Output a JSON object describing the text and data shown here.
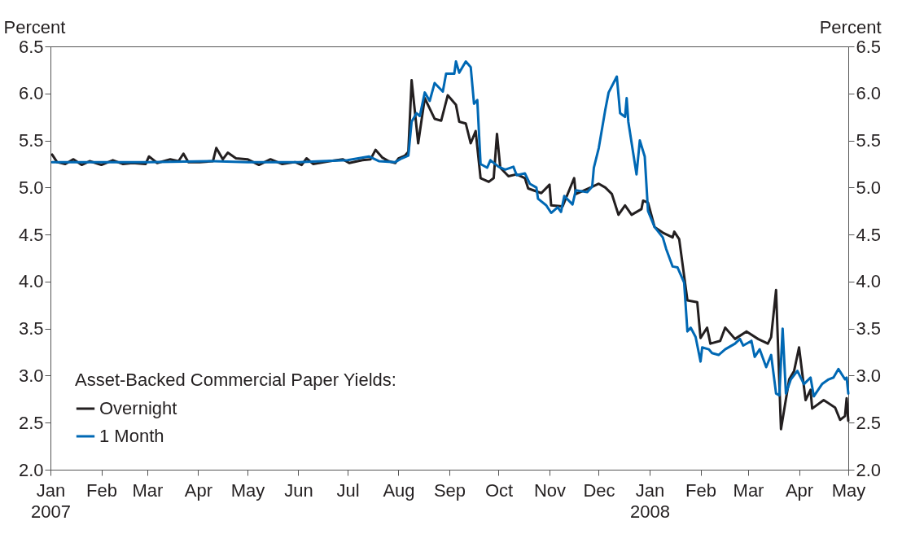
{
  "chart_data": {
    "type": "line",
    "ylabel": "Percent",
    "y2label": "Percent",
    "legend_title": "Asset-Backed Commercial Paper Yields:",
    "legend": "bottom left",
    "grid": false,
    "xlim": [
      "2007-01-01",
      "2008-05-01"
    ],
    "xticks": [
      {
        "value": "2007-01-01",
        "label": "Jan\n2007"
      },
      {
        "value": "2007-02-01",
        "label": "Feb"
      },
      {
        "value": "2007-03-01",
        "label": "Mar"
      },
      {
        "value": "2007-04-01",
        "label": "Apr"
      },
      {
        "value": "2007-05-01",
        "label": "May"
      },
      {
        "value": "2007-06-01",
        "label": "Jun"
      },
      {
        "value": "2007-07-01",
        "label": "Jul"
      },
      {
        "value": "2007-08-01",
        "label": "Aug"
      },
      {
        "value": "2007-09-01",
        "label": "Sep"
      },
      {
        "value": "2007-10-01",
        "label": "Oct"
      },
      {
        "value": "2007-11-01",
        "label": "Nov"
      },
      {
        "value": "2007-12-01",
        "label": "Dec"
      },
      {
        "value": "2008-01-01",
        "label": "Jan\n2008"
      },
      {
        "value": "2008-02-01",
        "label": "Feb"
      },
      {
        "value": "2008-03-01",
        "label": "Mar"
      },
      {
        "value": "2008-04-01",
        "label": "Apr"
      },
      {
        "value": "2008-05-01",
        "label": "May"
      }
    ],
    "ylim": [
      2.0,
      6.5
    ],
    "yticks": [
      {
        "value": 2,
        "label": "2.0"
      },
      {
        "value": 2.5,
        "label": "2.5"
      },
      {
        "value": 3,
        "label": "3.0"
      },
      {
        "value": 3.5,
        "label": "3.5"
      },
      {
        "value": 4,
        "label": "4.0"
      },
      {
        "value": 4.5,
        "label": "4.5"
      },
      {
        "value": 5,
        "label": "5.0"
      },
      {
        "value": 5.5,
        "label": "5.5"
      },
      {
        "value": 6,
        "label": "6.0"
      },
      {
        "value": 6.5,
        "label": "6.5"
      }
    ],
    "y2lim": [
      2.0,
      6.5
    ],
    "y2ticks": [
      {
        "value": 2,
        "label": "2.0"
      },
      {
        "value": 2.5,
        "label": "2.5"
      },
      {
        "value": 3,
        "label": "3.0"
      },
      {
        "value": 3.5,
        "label": "3.5"
      },
      {
        "value": 4,
        "label": "4.0"
      },
      {
        "value": 4.5,
        "label": "4.5"
      },
      {
        "value": 5,
        "label": "5.0"
      },
      {
        "value": 5.5,
        "label": "5.5"
      },
      {
        "value": 6,
        "label": "6.0"
      },
      {
        "value": 6.5,
        "label": "6.5"
      }
    ],
    "series": [
      {
        "name": "Overnight",
        "color": "#231f20",
        "x": [
          "2007-01-02",
          "2007-01-05",
          "2007-01-10",
          "2007-01-15",
          "2007-01-20",
          "2007-01-25",
          "2007-02-01",
          "2007-02-08",
          "2007-02-14",
          "2007-02-20",
          "2007-02-28",
          "2007-03-02",
          "2007-03-07",
          "2007-03-15",
          "2007-03-20",
          "2007-03-23",
          "2007-03-26",
          "2007-04-02",
          "2007-04-10",
          "2007-04-12",
          "2007-04-16",
          "2007-04-19",
          "2007-04-24",
          "2007-05-01",
          "2007-05-08",
          "2007-05-15",
          "2007-05-22",
          "2007-05-30",
          "2007-06-03",
          "2007-06-06",
          "2007-06-10",
          "2007-06-20",
          "2007-06-28",
          "2007-07-02",
          "2007-07-10",
          "2007-07-15",
          "2007-07-18",
          "2007-07-22",
          "2007-07-26",
          "2007-07-30",
          "2007-08-01",
          "2007-08-05",
          "2007-08-07",
          "2007-08-09",
          "2007-08-13",
          "2007-08-17",
          "2007-08-23",
          "2007-08-27",
          "2007-08-31",
          "2007-09-05",
          "2007-09-07",
          "2007-09-11",
          "2007-09-14",
          "2007-09-17",
          "2007-09-20",
          "2007-09-25",
          "2007-09-28",
          "2007-09-30",
          "2007-10-02",
          "2007-10-07",
          "2007-10-12",
          "2007-10-17",
          "2007-10-19",
          "2007-10-27",
          "2007-11-01",
          "2007-11-02",
          "2007-11-09",
          "2007-11-16",
          "2007-11-17",
          "2007-11-26",
          "2007-12-01",
          "2007-12-05",
          "2007-12-09",
          "2007-12-13",
          "2007-12-17",
          "2007-12-21",
          "2007-12-27",
          "2007-12-28",
          "2007-12-31",
          "2008-01-04",
          "2008-01-09",
          "2008-01-15",
          "2008-01-16",
          "2008-01-19",
          "2008-01-24",
          "2008-01-30",
          "2008-02-01",
          "2008-02-05",
          "2008-02-07",
          "2008-02-13",
          "2008-02-16",
          "2008-02-22",
          "2008-02-29",
          "2008-03-07",
          "2008-03-13",
          "2008-03-15",
          "2008-03-18",
          "2008-03-21",
          "2008-03-26",
          "2008-03-29",
          "2008-04-01",
          "2008-04-05",
          "2008-04-08",
          "2008-04-09",
          "2008-04-16",
          "2008-04-23",
          "2008-04-26",
          "2008-04-29",
          "2008-04-30",
          "2008-05-01"
        ],
        "values": [
          5.35,
          5.27,
          5.25,
          5.3,
          5.24,
          5.28,
          5.24,
          5.29,
          5.25,
          5.26,
          5.25,
          5.33,
          5.26,
          5.3,
          5.28,
          5.36,
          5.27,
          5.27,
          5.28,
          5.42,
          5.3,
          5.37,
          5.31,
          5.3,
          5.24,
          5.3,
          5.25,
          5.27,
          5.24,
          5.31,
          5.25,
          5.28,
          5.3,
          5.26,
          5.29,
          5.3,
          5.4,
          5.32,
          5.28,
          5.26,
          5.31,
          5.34,
          5.38,
          6.14,
          5.47,
          5.95,
          5.73,
          5.71,
          5.98,
          5.88,
          5.7,
          5.68,
          5.47,
          5.6,
          5.1,
          5.06,
          5.1,
          5.57,
          5.21,
          5.12,
          5.14,
          5.1,
          4.99,
          4.94,
          5.03,
          4.81,
          4.8,
          5.1,
          4.93,
          5.0,
          5.04,
          5.0,
          4.93,
          4.71,
          4.81,
          4.71,
          4.77,
          4.86,
          4.84,
          4.58,
          4.52,
          4.47,
          4.53,
          4.45,
          3.8,
          3.78,
          3.4,
          3.51,
          3.34,
          3.37,
          3.51,
          3.39,
          3.47,
          3.39,
          3.34,
          3.41,
          3.91,
          2.43,
          2.96,
          3.05,
          3.3,
          2.74,
          2.85,
          2.65,
          2.74,
          2.66,
          2.53,
          2.57,
          2.76,
          2.52
        ]
      },
      {
        "name": "1 Month",
        "color": "#0068b4",
        "x": [
          "2007-01-02",
          "2007-02-01",
          "2007-03-01",
          "2007-04-10",
          "2007-05-01",
          "2007-06-01",
          "2007-06-15",
          "2007-07-01",
          "2007-07-14",
          "2007-07-20",
          "2007-07-30",
          "2007-08-03",
          "2007-08-07",
          "2007-08-09",
          "2007-08-12",
          "2007-08-14",
          "2007-08-17",
          "2007-08-20",
          "2007-08-23",
          "2007-08-28",
          "2007-08-30",
          "2007-09-04",
          "2007-09-05",
          "2007-09-07",
          "2007-09-11",
          "2007-09-14",
          "2007-09-16",
          "2007-09-18",
          "2007-09-20",
          "2007-09-24",
          "2007-09-26",
          "2007-10-01",
          "2007-10-05",
          "2007-10-10",
          "2007-10-12",
          "2007-10-17",
          "2007-10-20",
          "2007-10-24",
          "2007-10-25",
          "2007-10-30",
          "2007-11-02",
          "2007-11-06",
          "2007-11-08",
          "2007-11-10",
          "2007-11-15",
          "2007-11-17",
          "2007-11-24",
          "2007-11-27",
          "2007-11-28",
          "2007-12-01",
          "2007-12-05",
          "2007-12-07",
          "2007-12-12",
          "2007-12-14",
          "2007-12-17",
          "2007-12-18",
          "2007-12-19",
          "2007-12-24",
          "2007-12-26",
          "2007-12-29",
          "2007-12-31",
          "2008-01-04",
          "2008-01-09",
          "2008-01-11",
          "2008-01-15",
          "2008-01-18",
          "2008-01-22",
          "2008-01-24",
          "2008-01-26",
          "2008-01-29",
          "2008-02-01",
          "2008-02-02",
          "2008-02-06",
          "2008-02-08",
          "2008-02-12",
          "2008-02-16",
          "2008-02-22",
          "2008-02-25",
          "2008-02-27",
          "2008-03-03",
          "2008-03-05",
          "2008-03-08",
          "2008-03-12",
          "2008-03-15",
          "2008-03-18",
          "2008-03-20",
          "2008-03-22",
          "2008-03-24",
          "2008-03-27",
          "2008-03-31",
          "2008-04-04",
          "2008-04-08",
          "2008-04-10",
          "2008-04-15",
          "2008-04-19",
          "2008-04-22",
          "2008-04-25",
          "2008-04-29",
          "2008-04-30",
          "2008-05-01"
        ],
        "values": [
          5.27,
          5.27,
          5.27,
          5.28,
          5.27,
          5.27,
          5.28,
          5.29,
          5.33,
          5.28,
          5.27,
          5.31,
          5.34,
          5.7,
          5.79,
          5.76,
          6.01,
          5.92,
          6.11,
          6.02,
          6.21,
          6.21,
          6.34,
          6.22,
          6.34,
          6.28,
          5.89,
          5.93,
          5.25,
          5.21,
          5.29,
          5.22,
          5.19,
          5.22,
          5.13,
          5.15,
          5.04,
          5.0,
          4.88,
          4.81,
          4.73,
          4.79,
          4.74,
          4.91,
          4.82,
          4.97,
          4.95,
          5.01,
          5.21,
          5.42,
          5.83,
          6.01,
          6.18,
          5.79,
          5.75,
          5.95,
          5.7,
          5.14,
          5.5,
          5.33,
          4.75,
          4.58,
          4.47,
          4.35,
          4.16,
          4.15,
          3.99,
          3.47,
          3.51,
          3.41,
          3.15,
          3.3,
          3.28,
          3.24,
          3.22,
          3.28,
          3.34,
          3.39,
          3.32,
          3.37,
          3.2,
          3.28,
          3.09,
          3.22,
          2.81,
          2.79,
          3.5,
          2.81,
          2.96,
          3.05,
          2.91,
          2.98,
          2.78,
          2.91,
          2.96,
          2.98,
          3.07,
          2.96,
          2.98,
          2.81
        ]
      }
    ]
  }
}
